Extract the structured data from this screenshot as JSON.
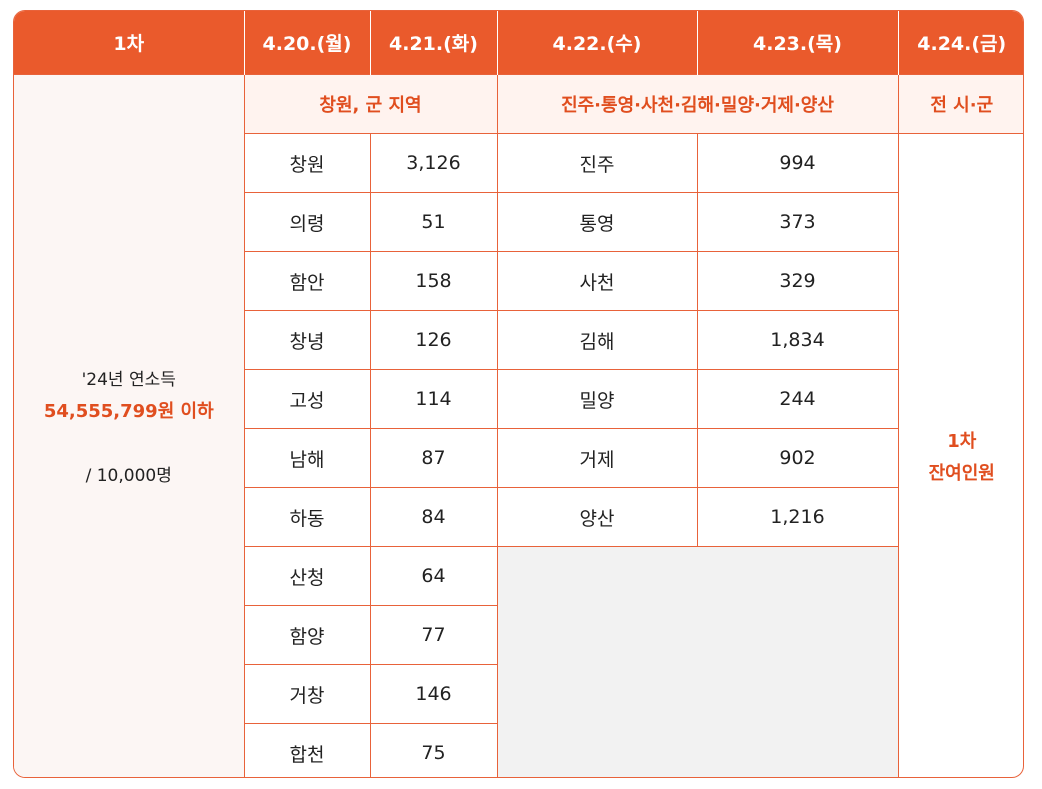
{
  "header": {
    "round": "1차",
    "dates": [
      "4.20.(월)",
      "4.21.(화)",
      "4.22.(수)",
      "4.23.(목)",
      "4.24.(금)"
    ]
  },
  "subheader": {
    "group1": "창원, 군 지역",
    "group2": "진주·통영·사천·김해·밀양·거제·양산",
    "group3": "전 시·군"
  },
  "criteria": {
    "line1": "'24년 연소득",
    "line2": "54,555,799원 이하",
    "line3": "/ 10,000명"
  },
  "group1_rows": [
    {
      "region": "창원",
      "count": "3,126"
    },
    {
      "region": "의령",
      "count": "51"
    },
    {
      "region": "함안",
      "count": "158"
    },
    {
      "region": "창녕",
      "count": "126"
    },
    {
      "region": "고성",
      "count": "114"
    },
    {
      "region": "남해",
      "count": "87"
    },
    {
      "region": "하동",
      "count": "84"
    },
    {
      "region": "산청",
      "count": "64"
    },
    {
      "region": "함양",
      "count": "77"
    },
    {
      "region": "거창",
      "count": "146"
    },
    {
      "region": "합천",
      "count": "75"
    }
  ],
  "group2_rows": [
    {
      "region": "진주",
      "count": "994"
    },
    {
      "region": "통영",
      "count": "373"
    },
    {
      "region": "사천",
      "count": "329"
    },
    {
      "region": "김해",
      "count": "1,834"
    },
    {
      "region": "밀양",
      "count": "244"
    },
    {
      "region": "거제",
      "count": "902"
    },
    {
      "region": "양산",
      "count": "1,216"
    }
  ],
  "remaining": {
    "line1": "1차",
    "line2": "잔여인원"
  }
}
